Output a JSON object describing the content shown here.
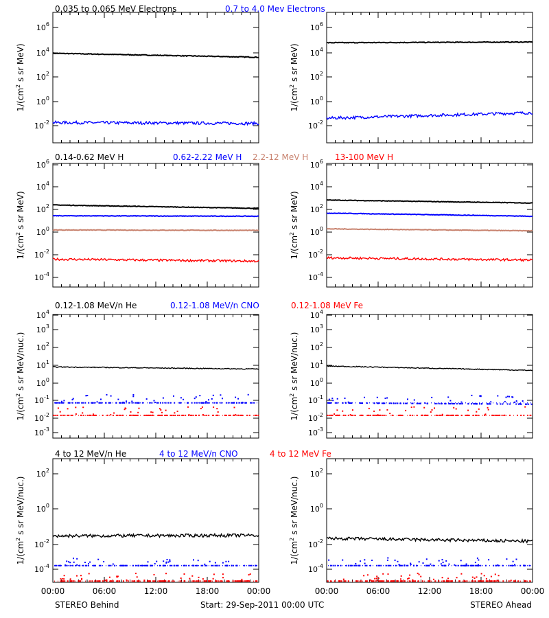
{
  "footer": {
    "left": "STEREO Behind",
    "center": "Start: 29-Sep-2011 00:00 UTC",
    "right": "STEREO Ahead"
  },
  "x_ticks": [
    "00:00",
    "06:00",
    "12:00",
    "18:00",
    "00:00"
  ],
  "rows": [
    {
      "legend": [
        {
          "text": "0.035 to 0.065 MeV Electrons",
          "color": "#000000"
        },
        {
          "text": "0.7 to 4.0 Mev Electrons",
          "color": "#0000ff"
        }
      ],
      "ylabel": [
        "1/(cm",
        "2",
        " s sr MeV)"
      ],
      "yticks": [
        {
          "m": "10",
          "e": "6"
        },
        {
          "m": "10",
          "e": "4"
        },
        {
          "m": "10",
          "e": "2"
        },
        {
          "m": "10",
          "e": "0"
        },
        {
          "m": "10",
          "e": "-2"
        }
      ]
    },
    {
      "legend": [
        {
          "text": "0.14-0.62 MeV H",
          "color": "#000000"
        },
        {
          "text": "0.62-2.22 MeV H",
          "color": "#0000ff"
        },
        {
          "text": "2.2-12 MeV H",
          "color": "#c8826e"
        },
        {
          "text": "13-100 MeV H",
          "color": "#ff0000"
        }
      ],
      "ylabel": [
        "1/(cm",
        "2",
        " s sr MeV)"
      ],
      "yticks": [
        {
          "m": "10",
          "e": "6"
        },
        {
          "m": "10",
          "e": "4"
        },
        {
          "m": "10",
          "e": "2"
        },
        {
          "m": "10",
          "e": "0"
        },
        {
          "m": "10",
          "e": "-2"
        },
        {
          "m": "10",
          "e": "-4"
        }
      ]
    },
    {
      "legend": [
        {
          "text": "0.12-1.08 MeV/n He",
          "color": "#000000"
        },
        {
          "text": "0.12-1.08 MeV/n CNO",
          "color": "#0000ff"
        },
        {
          "text": "0.12-1.08 MeV Fe",
          "color": "#ff0000"
        }
      ],
      "ylabel": [
        "1/(cm",
        "2",
        " s sr MeV/nuc.)"
      ],
      "yticks": [
        {
          "m": "10",
          "e": "4"
        },
        {
          "m": "10",
          "e": "3"
        },
        {
          "m": "10",
          "e": "2"
        },
        {
          "m": "10",
          "e": "1"
        },
        {
          "m": "10",
          "e": "0"
        },
        {
          "m": "10",
          "e": "-1"
        },
        {
          "m": "10",
          "e": "-2"
        },
        {
          "m": "10",
          "e": "-3"
        }
      ]
    },
    {
      "legend": [
        {
          "text": "4 to 12 MeV/n He",
          "color": "#000000"
        },
        {
          "text": "4 to 12 MeV/n CNO",
          "color": "#0000ff"
        },
        {
          "text": "4 to 12 MeV Fe",
          "color": "#ff0000"
        }
      ],
      "ylabel": [
        "1/(cm",
        "2",
        " s sr MeV/nuc.)"
      ],
      "yticks": [
        {
          "m": "10",
          "e": "2"
        },
        {
          "m": "10",
          "e": "0"
        },
        {
          "m": "10",
          "e": "-2"
        },
        {
          "m": "10",
          "e": "-4"
        }
      ]
    }
  ],
  "chart_data": [
    {
      "type": "line",
      "panel": "Behind electrons",
      "yscale": "log",
      "ylim": [
        0.001,
        1000000.0
      ],
      "xlim": [
        "00:00",
        "24:00"
      ],
      "series": [
        {
          "name": "0.035 to 0.065 MeV Electrons",
          "color": "#000000",
          "x": [
            0,
            24
          ],
          "y": [
            1500,
            800
          ]
        },
        {
          "name": "0.7 to 4.0 Mev Electrons",
          "color": "#0000ff",
          "x": [
            0,
            24
          ],
          "y": [
            0.025,
            0.022
          ]
        }
      ]
    },
    {
      "type": "line",
      "panel": "Ahead electrons",
      "yscale": "log",
      "ylim": [
        0.001,
        1000000.0
      ],
      "xlim": [
        "00:00",
        "24:00"
      ],
      "series": [
        {
          "name": "0.035 to 0.065 MeV Electrons",
          "color": "#000000",
          "x": [
            0,
            24
          ],
          "y": [
            8000,
            9000
          ]
        },
        {
          "name": "0.7 to 4.0 Mev Electrons",
          "color": "#0000ff",
          "x": [
            0,
            24
          ],
          "y": [
            0.05,
            0.12
          ]
        }
      ]
    },
    {
      "type": "line",
      "panel": "Behind H",
      "yscale": "log",
      "ylim": [
        1e-05,
        1000000.0
      ],
      "xlim": [
        "00:00",
        "24:00"
      ],
      "series": [
        {
          "name": "0.14-0.62 MeV H",
          "color": "#000000",
          "x": [
            0,
            24
          ],
          "y": [
            200,
            100
          ]
        },
        {
          "name": "0.62-2.22 MeV H",
          "color": "#0000ff",
          "x": [
            0,
            24
          ],
          "y": [
            22,
            20
          ]
        },
        {
          "name": "2.2-12 MeV H",
          "color": "#c8826e",
          "x": [
            0,
            24
          ],
          "y": [
            1.2,
            1.1
          ]
        },
        {
          "name": "13-100 MeV H",
          "color": "#ff0000",
          "x": [
            0,
            24
          ],
          "y": [
            0.003,
            0.002
          ]
        }
      ]
    },
    {
      "type": "line",
      "panel": "Ahead H",
      "yscale": "log",
      "ylim": [
        1e-05,
        1000000.0
      ],
      "xlim": [
        "00:00",
        "24:00"
      ],
      "series": [
        {
          "name": "0.14-0.62 MeV H",
          "color": "#000000",
          "x": [
            0,
            24
          ],
          "y": [
            550,
            300
          ]
        },
        {
          "name": "0.62-2.22 MeV H",
          "color": "#0000ff",
          "x": [
            0,
            24
          ],
          "y": [
            38,
            20
          ]
        },
        {
          "name": "2.2-12 MeV H",
          "color": "#c8826e",
          "x": [
            0,
            24
          ],
          "y": [
            1.5,
            1.0
          ]
        },
        {
          "name": "13-100 MeV H",
          "color": "#ff0000",
          "x": [
            0,
            24
          ],
          "y": [
            0.004,
            0.0025
          ]
        }
      ]
    },
    {
      "type": "scatter",
      "panel": "Behind low-energy ions",
      "yscale": "log",
      "ylim": [
        0.0005,
        10000.0
      ],
      "xlim": [
        "00:00",
        "24:00"
      ],
      "series": [
        {
          "name": "0.12-1.08 MeV/n He",
          "color": "#000000",
          "x": [
            0,
            24
          ],
          "y": [
            8,
            6
          ]
        },
        {
          "name": "0.12-1.08 MeV/n CNO",
          "color": "#0000ff",
          "x": [
            0,
            24
          ],
          "y": [
            0.06,
            0.06
          ]
        },
        {
          "name": "0.12-1.08 MeV Fe",
          "color": "#ff0000",
          "x": [
            0,
            24
          ],
          "y": [
            0.011,
            0.011
          ]
        }
      ]
    },
    {
      "type": "scatter",
      "panel": "Ahead low-energy ions",
      "yscale": "log",
      "ylim": [
        0.0005,
        10000.0
      ],
      "xlim": [
        "00:00",
        "24:00"
      ],
      "series": [
        {
          "name": "0.12-1.08 MeV/n He",
          "color": "#000000",
          "x": [
            0,
            24
          ],
          "y": [
            9,
            5
          ]
        },
        {
          "name": "0.12-1.08 MeV/n CNO",
          "color": "#0000ff",
          "x": [
            0,
            24
          ],
          "y": [
            0.06,
            0.05
          ]
        },
        {
          "name": "0.12-1.08 MeV Fe",
          "color": "#ff0000",
          "x": [
            0,
            24
          ],
          "y": [
            0.011,
            0.011
          ]
        }
      ]
    },
    {
      "type": "scatter",
      "panel": "Behind high-energy ions",
      "yscale": "log",
      "ylim": [
        1e-05,
        1000.0
      ],
      "xlim": [
        "00:00",
        "24:00"
      ],
      "series": [
        {
          "name": "4 to 12 MeV/n He",
          "color": "#000000",
          "x": [
            0,
            24
          ],
          "y": [
            0.01,
            0.011
          ]
        },
        {
          "name": "4 to 12 MeV/n CNO",
          "color": "#0000ff",
          "x": [
            0,
            24
          ],
          "y": [
            0.00012,
            0.00012
          ]
        },
        {
          "name": "4 to 12 MeV Fe",
          "color": "#ff0000",
          "x": [
            0,
            24
          ],
          "y": [
            1.2e-05,
            1.2e-05
          ]
        }
      ]
    },
    {
      "type": "scatter",
      "panel": "Ahead high-energy ions",
      "yscale": "log",
      "ylim": [
        1e-05,
        1000.0
      ],
      "xlim": [
        "00:00",
        "24:00"
      ],
      "series": [
        {
          "name": "4 to 12 MeV/n He",
          "color": "#000000",
          "x": [
            0,
            24
          ],
          "y": [
            0.007,
            0.0045
          ]
        },
        {
          "name": "4 to 12 MeV/n CNO",
          "color": "#0000ff",
          "x": [
            0,
            24
          ],
          "y": [
            0.00012,
            0.00012
          ]
        },
        {
          "name": "4 to 12 MeV Fe",
          "color": "#ff0000",
          "x": [
            0,
            24
          ],
          "y": [
            1.2e-05,
            1.2e-05
          ]
        }
      ]
    }
  ]
}
